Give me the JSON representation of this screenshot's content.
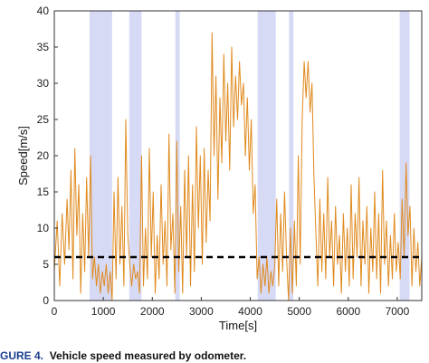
{
  "chart_data": {
    "type": "line",
    "xlabel": "Time[s]",
    "ylabel": "Speed[m/s]",
    "xlim": [
      0,
      7500
    ],
    "ylim": [
      0,
      40
    ],
    "xticks": [
      0,
      1000,
      2000,
      3000,
      4000,
      5000,
      6000,
      7000
    ],
    "yticks": [
      0,
      5,
      10,
      15,
      20,
      25,
      30,
      35,
      40
    ],
    "grid": false,
    "threshold": {
      "value": 6,
      "style": "dashed",
      "color": "#000000"
    },
    "shaded_intervals": [
      [
        720,
        1180
      ],
      [
        1530,
        1780
      ],
      [
        2470,
        2560
      ],
      [
        4150,
        4520
      ],
      [
        4790,
        4880
      ],
      [
        7050,
        7250
      ]
    ],
    "series": [
      {
        "color": "#e08a1e",
        "points": [
          [
            0,
            4
          ],
          [
            60,
            11
          ],
          [
            110,
            2
          ],
          [
            160,
            12
          ],
          [
            210,
            5
          ],
          [
            260,
            14
          ],
          [
            300,
            7
          ],
          [
            340,
            18
          ],
          [
            380,
            3
          ],
          [
            420,
            21
          ],
          [
            460,
            9
          ],
          [
            500,
            16
          ],
          [
            540,
            1
          ],
          [
            580,
            12
          ],
          [
            620,
            4
          ],
          [
            660,
            17
          ],
          [
            700,
            6
          ],
          [
            740,
            20
          ],
          [
            780,
            3
          ],
          [
            820,
            6
          ],
          [
            860,
            2
          ],
          [
            900,
            5
          ],
          [
            940,
            1
          ],
          [
            980,
            4
          ],
          [
            1020,
            2
          ],
          [
            1060,
            5
          ],
          [
            1100,
            1
          ],
          [
            1140,
            4
          ],
          [
            1180,
            0
          ],
          [
            1220,
            15
          ],
          [
            1260,
            3
          ],
          [
            1300,
            17
          ],
          [
            1340,
            5
          ],
          [
            1380,
            13
          ],
          [
            1420,
            2
          ],
          [
            1460,
            25
          ],
          [
            1500,
            9
          ],
          [
            1540,
            5
          ],
          [
            1580,
            2
          ],
          [
            1620,
            5
          ],
          [
            1660,
            3
          ],
          [
            1700,
            4
          ],
          [
            1740,
            1
          ],
          [
            1780,
            20
          ],
          [
            1820,
            2
          ],
          [
            1860,
            10
          ],
          [
            1900,
            3
          ],
          [
            1940,
            21
          ],
          [
            1980,
            6
          ],
          [
            2020,
            15
          ],
          [
            2060,
            1
          ],
          [
            2100,
            9
          ],
          [
            2140,
            3
          ],
          [
            2180,
            16
          ],
          [
            2220,
            5
          ],
          [
            2260,
            11
          ],
          [
            2300,
            2
          ],
          [
            2340,
            23
          ],
          [
            2380,
            7
          ],
          [
            2420,
            12
          ],
          [
            2460,
            1
          ],
          [
            2500,
            22
          ],
          [
            2540,
            4
          ],
          [
            2580,
            13
          ],
          [
            2620,
            1
          ],
          [
            2660,
            18
          ],
          [
            2700,
            6
          ],
          [
            2740,
            20
          ],
          [
            2780,
            2
          ],
          [
            2820,
            16
          ],
          [
            2860,
            4
          ],
          [
            2900,
            24
          ],
          [
            2940,
            10
          ],
          [
            2980,
            20
          ],
          [
            3020,
            5
          ],
          [
            3060,
            21
          ],
          [
            3100,
            8
          ],
          [
            3140,
            18
          ],
          [
            3180,
            11
          ],
          [
            3220,
            37
          ],
          [
            3260,
            20
          ],
          [
            3300,
            31
          ],
          [
            3340,
            14
          ],
          [
            3380,
            28
          ],
          [
            3420,
            19
          ],
          [
            3460,
            34
          ],
          [
            3500,
            22
          ],
          [
            3540,
            30
          ],
          [
            3580,
            18
          ],
          [
            3620,
            35
          ],
          [
            3660,
            24
          ],
          [
            3700,
            31
          ],
          [
            3740,
            25
          ],
          [
            3780,
            33
          ],
          [
            3820,
            27
          ],
          [
            3860,
            30
          ],
          [
            3900,
            20
          ],
          [
            3940,
            28
          ],
          [
            3980,
            18
          ],
          [
            4020,
            25
          ],
          [
            4060,
            12
          ],
          [
            4100,
            16
          ],
          [
            4140,
            3
          ],
          [
            4180,
            6
          ],
          [
            4220,
            1
          ],
          [
            4260,
            5
          ],
          [
            4300,
            2
          ],
          [
            4340,
            6
          ],
          [
            4380,
            1
          ],
          [
            4420,
            4
          ],
          [
            4460,
            2
          ],
          [
            4500,
            5
          ],
          [
            4540,
            14
          ],
          [
            4580,
            2
          ],
          [
            4620,
            12
          ],
          [
            4660,
            4
          ],
          [
            4700,
            15
          ],
          [
            4740,
            6
          ],
          [
            4780,
            0
          ],
          [
            4820,
            10
          ],
          [
            4860,
            1
          ],
          [
            4900,
            11
          ],
          [
            4940,
            2
          ],
          [
            4980,
            20
          ],
          [
            5020,
            5
          ],
          [
            5060,
            25
          ],
          [
            5100,
            33
          ],
          [
            5140,
            28
          ],
          [
            5180,
            33
          ],
          [
            5220,
            26
          ],
          [
            5260,
            30
          ],
          [
            5300,
            17
          ],
          [
            5340,
            9
          ],
          [
            5380,
            2
          ],
          [
            5420,
            14
          ],
          [
            5460,
            4
          ],
          [
            5500,
            12
          ],
          [
            5540,
            3
          ],
          [
            5580,
            17
          ],
          [
            5620,
            6
          ],
          [
            5660,
            11
          ],
          [
            5700,
            2
          ],
          [
            5740,
            13
          ],
          [
            5780,
            5
          ],
          [
            5820,
            9
          ],
          [
            5860,
            1
          ],
          [
            5900,
            12
          ],
          [
            5940,
            4
          ],
          [
            5980,
            10
          ],
          [
            6020,
            2
          ],
          [
            6060,
            16
          ],
          [
            6100,
            3
          ],
          [
            6140,
            12
          ],
          [
            6180,
            6
          ],
          [
            6220,
            17
          ],
          [
            6260,
            2
          ],
          [
            6300,
            11
          ],
          [
            6340,
            5
          ],
          [
            6380,
            13
          ],
          [
            6420,
            1
          ],
          [
            6460,
            10
          ],
          [
            6500,
            4
          ],
          [
            6540,
            15
          ],
          [
            6580,
            3
          ],
          [
            6620,
            12
          ],
          [
            6660,
            1
          ],
          [
            6700,
            18
          ],
          [
            6740,
            5
          ],
          [
            6780,
            11
          ],
          [
            6820,
            2
          ],
          [
            6860,
            9
          ],
          [
            6900,
            3
          ],
          [
            6940,
            12
          ],
          [
            6980,
            4
          ],
          [
            7020,
            8
          ],
          [
            7060,
            3
          ],
          [
            7100,
            14
          ],
          [
            7140,
            6
          ],
          [
            7180,
            19
          ],
          [
            7220,
            9
          ],
          [
            7260,
            13
          ],
          [
            7300,
            2
          ],
          [
            7340,
            10
          ],
          [
            7380,
            4
          ],
          [
            7420,
            8
          ],
          [
            7460,
            2
          ],
          [
            7500,
            6
          ]
        ]
      }
    ]
  },
  "caption": {
    "figure": "GURE 4.",
    "text": "Vehicle speed measured by odometer."
  }
}
